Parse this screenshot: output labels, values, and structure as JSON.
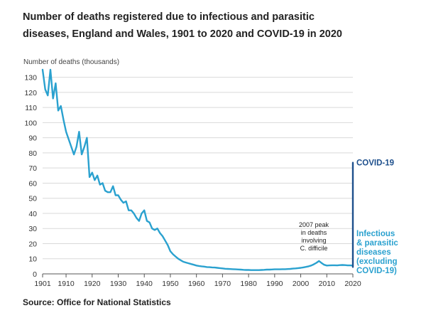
{
  "title": {
    "line1": "Number of deaths registered due to infectious and parasitic",
    "line2": "diseases, England and Wales, 1901 to 2020 and COVID-19 in 2020"
  },
  "source": "Source: Office for National Statistics",
  "colors": {
    "infectious": "#2aa1cf",
    "covid": "#1d4f8c",
    "grid": "#d9d9d9",
    "axis": "#555555"
  },
  "chart_data": {
    "type": "line",
    "title": "Number of deaths registered due to infectious and parasitic diseases, England and Wales, 1901 to 2020 and COVID-19 in 2020",
    "ylabel": "Number of deaths (thousands)",
    "xlabel": "",
    "xlim": [
      1901,
      2020
    ],
    "ylim": [
      0,
      135
    ],
    "yticks": [
      0,
      10,
      20,
      30,
      40,
      50,
      60,
      70,
      80,
      90,
      100,
      110,
      120,
      130
    ],
    "xticks": [
      1901,
      1910,
      1920,
      1930,
      1940,
      1950,
      1960,
      1970,
      1980,
      1990,
      2000,
      2010,
      2020
    ],
    "grid": true,
    "series": [
      {
        "name": "Infectious & parasitic diseases (excluding COVID-19)",
        "label_lines": [
          "Infectious",
          "& parasitic",
          "diseases",
          "(excluding",
          "COVID-19)"
        ],
        "x": [
          1901,
          1902,
          1903,
          1904,
          1905,
          1906,
          1907,
          1908,
          1909,
          1910,
          1911,
          1912,
          1913,
          1914,
          1915,
          1916,
          1917,
          1918,
          1919,
          1920,
          1921,
          1922,
          1923,
          1924,
          1925,
          1926,
          1927,
          1928,
          1929,
          1930,
          1931,
          1932,
          1933,
          1934,
          1935,
          1936,
          1937,
          1938,
          1939,
          1940,
          1941,
          1942,
          1943,
          1944,
          1945,
          1946,
          1947,
          1948,
          1949,
          1950,
          1951,
          1952,
          1953,
          1954,
          1955,
          1956,
          1957,
          1958,
          1959,
          1960,
          1961,
          1962,
          1963,
          1964,
          1965,
          1966,
          1967,
          1968,
          1969,
          1970,
          1971,
          1972,
          1973,
          1974,
          1975,
          1976,
          1977,
          1978,
          1979,
          1980,
          1981,
          1982,
          1983,
          1984,
          1985,
          1986,
          1987,
          1988,
          1989,
          1990,
          1991,
          1992,
          1993,
          1994,
          1995,
          1996,
          1997,
          1998,
          1999,
          2000,
          2001,
          2002,
          2003,
          2004,
          2005,
          2006,
          2007,
          2008,
          2009,
          2010,
          2011,
          2012,
          2013,
          2014,
          2015,
          2016,
          2017,
          2018,
          2019,
          2020
        ],
        "values": [
          135,
          122,
          118,
          135,
          116,
          126,
          108,
          111,
          102,
          94,
          89,
          84,
          79,
          84,
          94,
          79,
          84,
          90,
          64,
          67,
          62,
          65,
          59,
          60,
          55,
          54,
          54,
          58,
          52,
          52,
          49,
          47,
          48,
          42,
          42,
          40,
          37,
          35,
          40,
          42,
          35,
          34,
          30,
          29,
          30,
          27,
          25,
          22,
          19,
          15,
          13,
          11.5,
          10,
          9,
          8,
          7.5,
          7,
          6.5,
          6,
          5.5,
          5.2,
          5,
          4.8,
          4.5,
          4.4,
          4.3,
          4.2,
          4,
          3.8,
          3.6,
          3.4,
          3.3,
          3.2,
          3.1,
          3,
          2.9,
          2.8,
          2.7,
          2.6,
          2.6,
          2.5,
          2.5,
          2.5,
          2.5,
          2.6,
          2.7,
          2.8,
          2.8,
          2.9,
          3,
          3,
          3,
          3.1,
          3.1,
          3.2,
          3.3,
          3.5,
          3.6,
          3.8,
          4,
          4.3,
          4.6,
          5,
          5.5,
          6.3,
          7.3,
          8.5,
          7.2,
          6,
          5.5,
          5.6,
          5.7,
          5.7,
          5.6,
          5.8,
          5.9,
          5.8,
          5.6,
          5.6,
          5.5
        ]
      },
      {
        "name": "COVID-19",
        "label_lines": [
          "COVID-19"
        ],
        "x": [
          2020,
          2020
        ],
        "values": [
          4.5,
          73.5
        ]
      }
    ],
    "annotations": [
      {
        "x": 2007,
        "y": 8.5,
        "lines": [
          "2007 peak",
          "in deaths",
          "involving",
          "C. difficile"
        ]
      }
    ]
  }
}
